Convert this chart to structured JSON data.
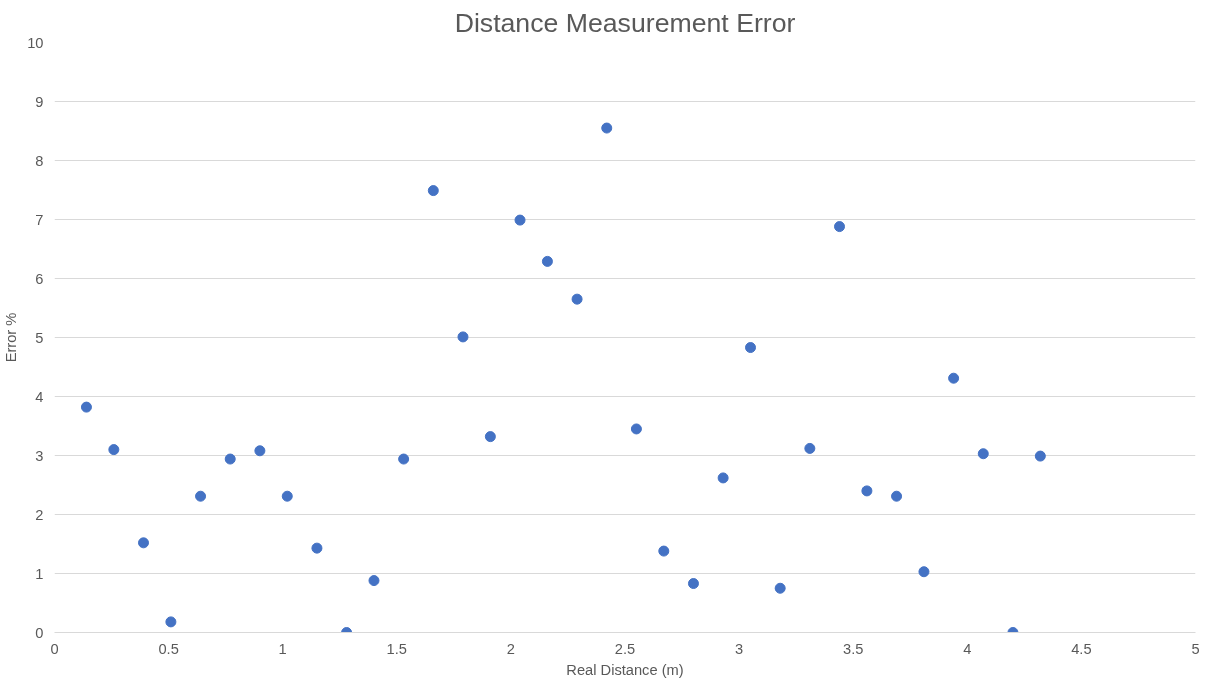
{
  "chart_data": {
    "type": "scatter",
    "title": "Distance Measurement Error",
    "xlabel": "Real Distance (m)",
    "ylabel": "Error %",
    "x": [
      0.14,
      0.26,
      0.39,
      0.51,
      0.64,
      0.77,
      0.9,
      1.02,
      1.15,
      1.28,
      1.4,
      1.53,
      1.66,
      1.79,
      1.91,
      2.04,
      2.16,
      2.29,
      2.42,
      2.55,
      2.67,
      2.8,
      2.93,
      3.05,
      3.18,
      3.31,
      3.44,
      3.56,
      3.69,
      3.81,
      3.94,
      4.07,
      4.2,
      4.32
    ],
    "series": [
      {
        "color": "#4472c4",
        "values": [
          3.82,
          3.1,
          1.52,
          0.18,
          2.31,
          2.94,
          3.08,
          2.31,
          1.43,
          0,
          0.88,
          2.94,
          7.49,
          5.01,
          3.32,
          6.99,
          6.29,
          5.65,
          8.55,
          3.45,
          1.38,
          0.83,
          2.62,
          4.83,
          0.75,
          3.12,
          6.88,
          2.4,
          2.31,
          1.03,
          4.31,
          3.03,
          0,
          2.99
        ]
      }
    ],
    "xlim": [
      0,
      5
    ],
    "ylim": [
      0,
      10
    ],
    "xticks": [
      0,
      0.5,
      1,
      1.5,
      2,
      2.5,
      3,
      3.5,
      4,
      4.5,
      5
    ],
    "yticks": [
      0,
      1,
      2,
      3,
      4,
      5,
      6,
      7,
      8,
      9,
      10
    ],
    "grid": "y",
    "marker": "circle"
  }
}
